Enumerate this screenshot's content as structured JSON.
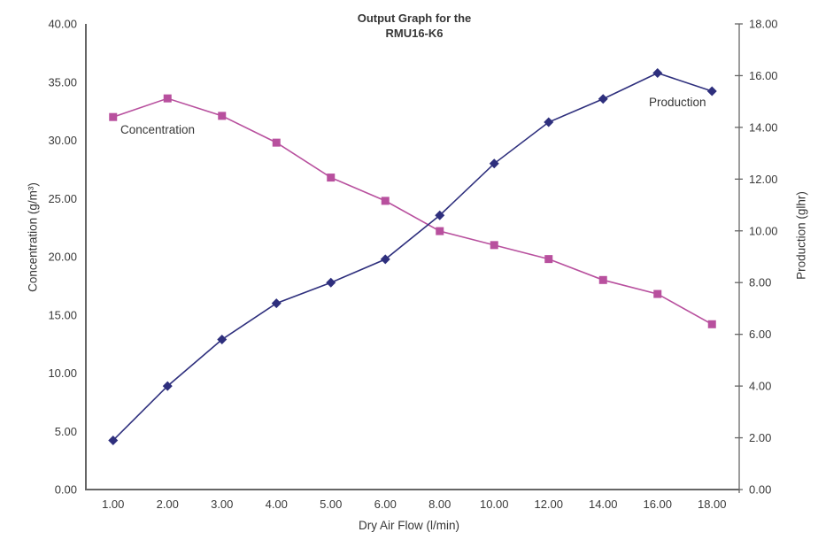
{
  "chart_data": {
    "type": "line",
    "title": "Output Graph for the RMU16-K6",
    "title_line1": "Output Graph for the",
    "title_line2": "RMU16-K6",
    "xlabel": "Dry Air Flow (l/min)",
    "ylabel_left": "Concentration (g/m³)",
    "ylabel_right": "Production (glhr)",
    "ylim_left": [
      0,
      40
    ],
    "ylim_right": [
      0,
      18
    ],
    "grid": false,
    "legend": "inline-text-labels",
    "categories": [
      "1.00",
      "2.00",
      "3.00",
      "4.00",
      "5.00",
      "6.00",
      "8.00",
      "10.00",
      "12.00",
      "14.00",
      "16.00",
      "18.00"
    ],
    "y_left_tick_labels": [
      "0.00",
      "5.00",
      "10.00",
      "15.00",
      "20.00",
      "25.00",
      "30.00",
      "35.00",
      "40.00"
    ],
    "y_right_tick_labels": [
      "0.00",
      "2.00",
      "4.00",
      "6.00",
      "8.00",
      "10.00",
      "12.00",
      "14.00",
      "16.00",
      "18.00"
    ],
    "series": [
      {
        "name": "Concentration",
        "axis": "left",
        "marker": "square",
        "color": "#b8509e",
        "values": [
          32.0,
          33.6,
          32.1,
          29.8,
          26.8,
          24.8,
          22.2,
          21.0,
          19.8,
          18.0,
          16.8,
          14.2
        ]
      },
      {
        "name": "Production",
        "axis": "right",
        "marker": "diamond",
        "color": "#2e2f7d",
        "values": [
          1.9,
          4.0,
          5.8,
          7.2,
          8.0,
          8.9,
          10.6,
          12.6,
          14.2,
          15.1,
          16.1,
          15.4
        ]
      }
    ],
    "colors": {
      "axis": "#666666",
      "text": "#3a3a3a",
      "background": "#ffffff"
    }
  }
}
